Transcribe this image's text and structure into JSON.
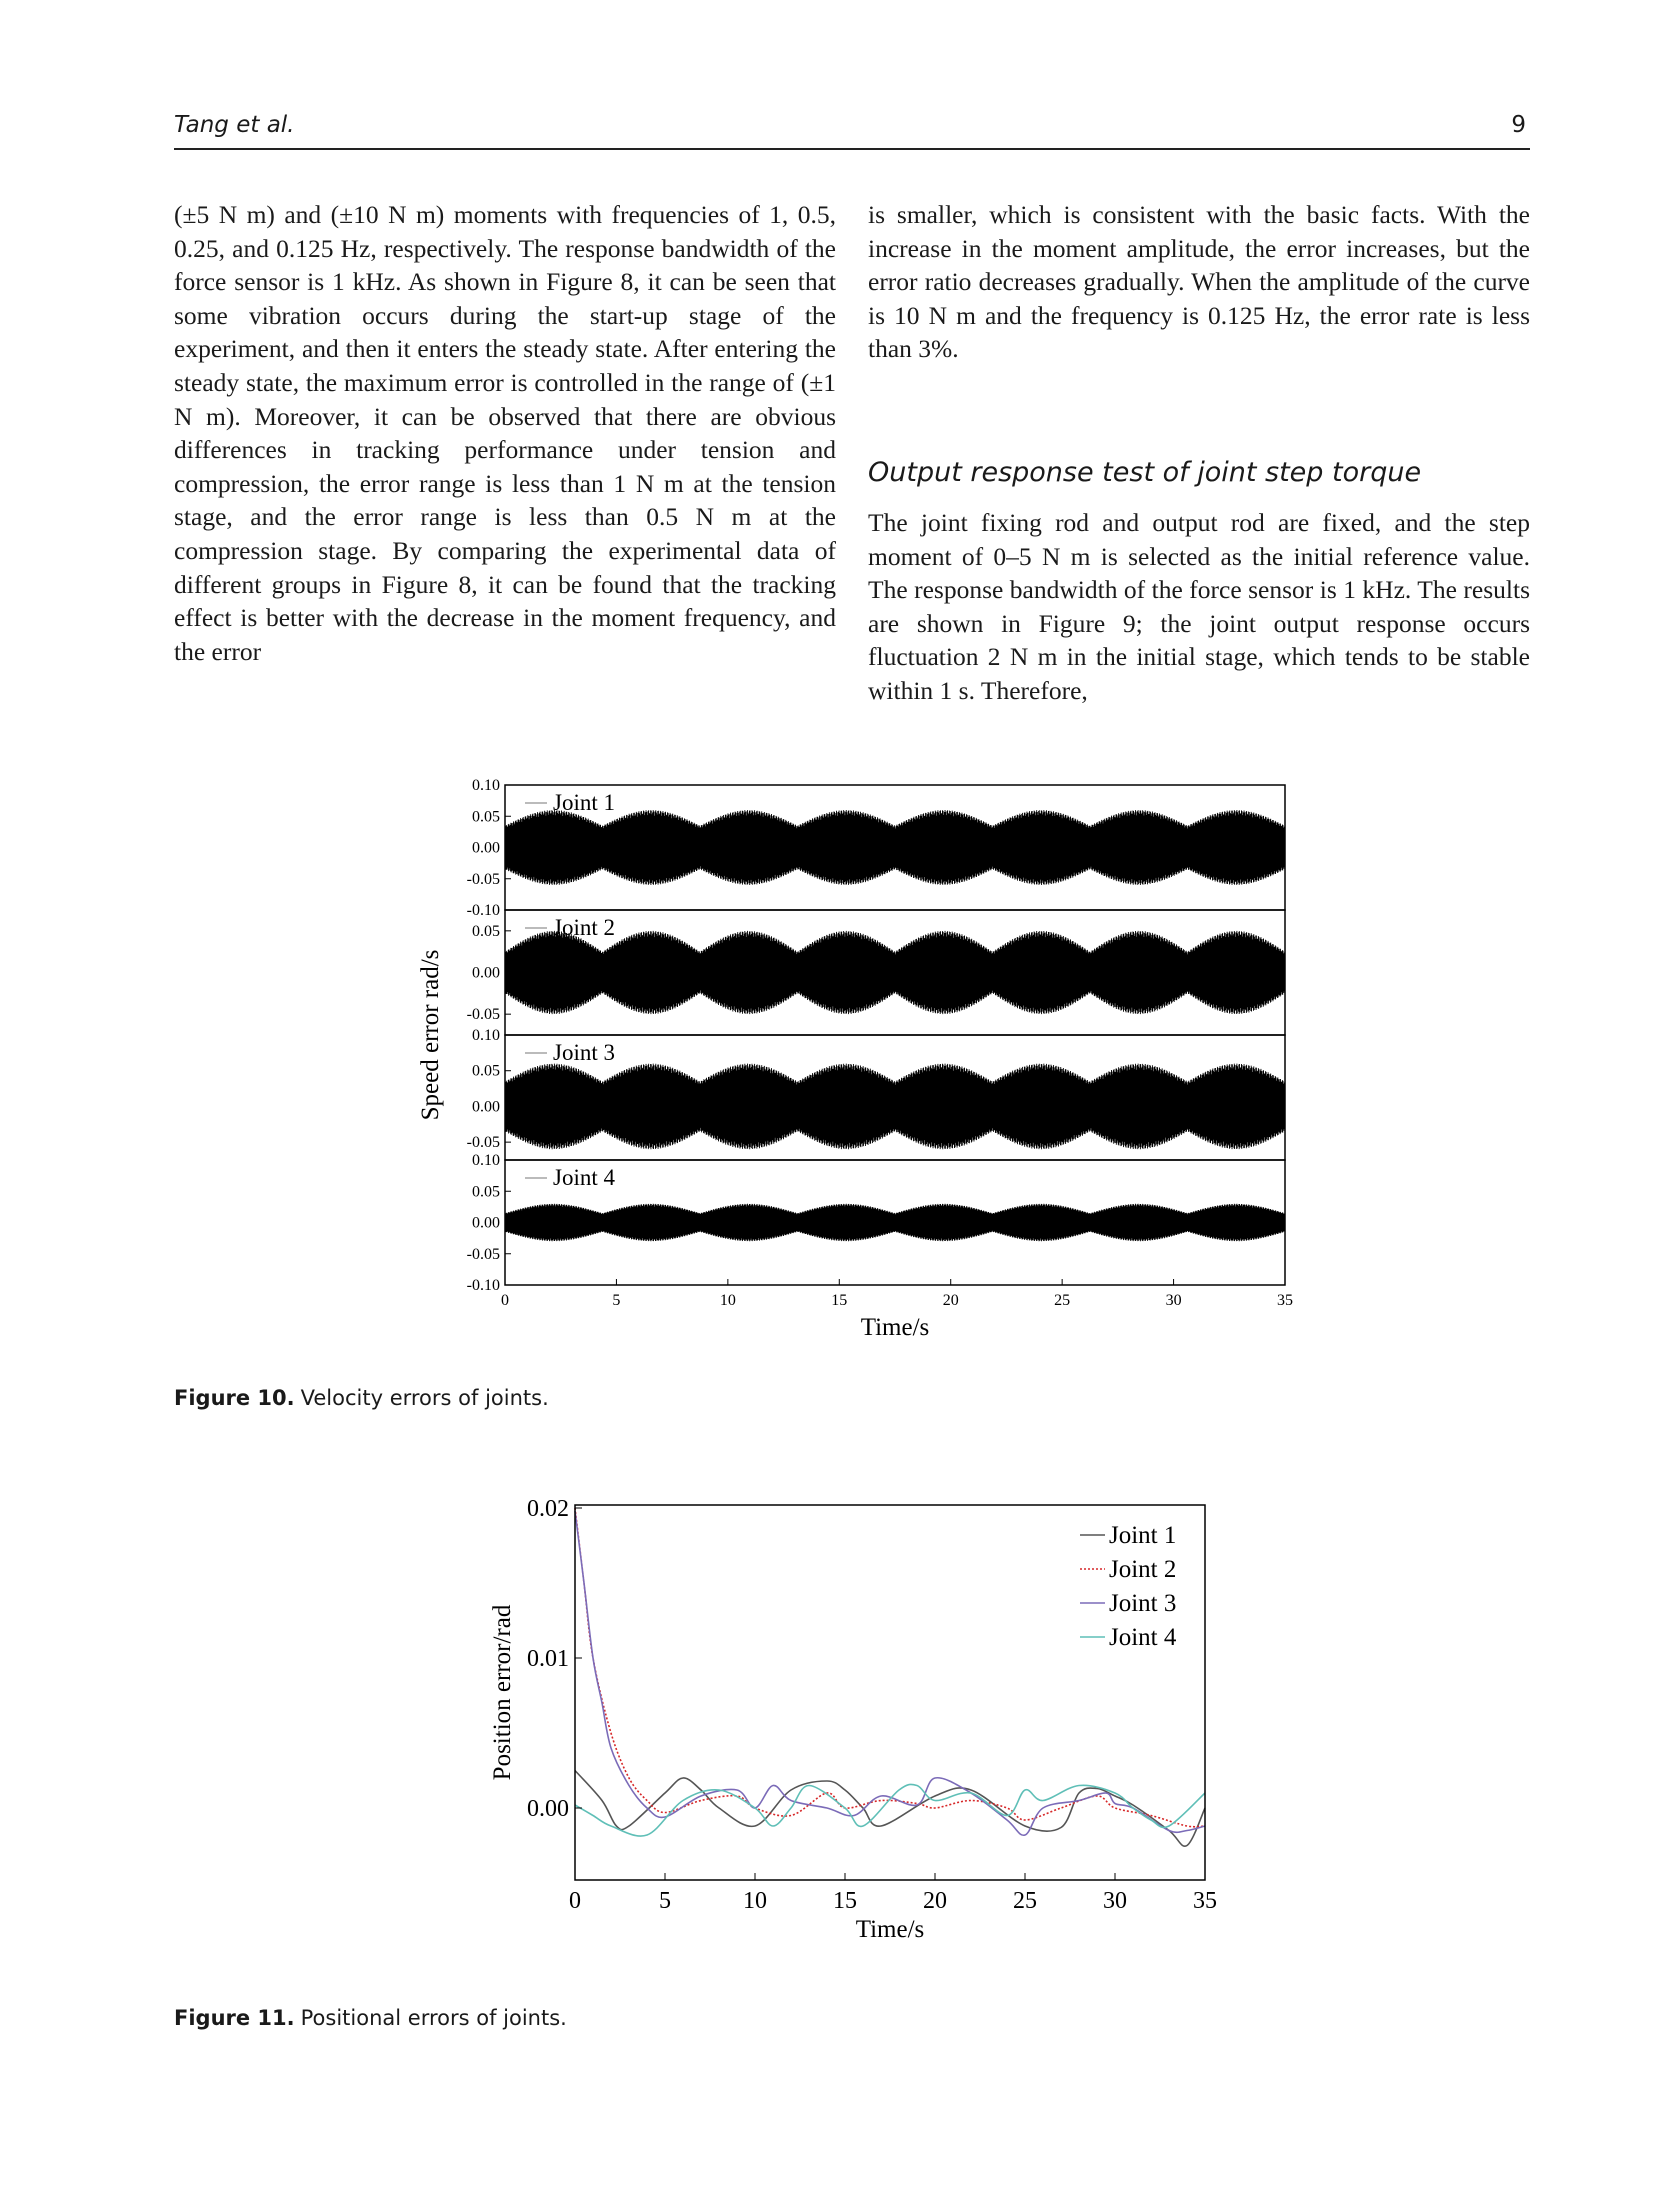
{
  "header": {
    "author": "Tang et al.",
    "page_number": "9"
  },
  "left_column": {
    "paragraph": "(±5 N m) and (±10 N m) moments with frequencies of 1, 0.5, 0.25, and 0.125 Hz, respectively. The response bandwidth of the force sensor is 1 kHz. As shown in Figure 8, it can be seen that some vibration occurs during the start-up stage of the experiment, and then it enters the steady state. After entering the steady state, the maximum error is controlled in the range of (±1 N m). Moreover, it can be observed that there are obvious differences in tracking performance under tension and compression, the error range is less than 1 N m at the tension stage, and the error range is less than 0.5 N m at the compression stage. By comparing the experimental data of different groups in Figure 8, it can be found that the tracking effect is better with the decrease in the moment frequency, and the error"
  },
  "right_column": {
    "paragraph1": "is smaller, which is consistent with the basic facts. With the increase in the moment amplitude, the error increases, but the error ratio decreases gradually. When the amplitude of the curve is 10 N m and the frequency is 0.125 Hz, the error rate is less than 3%.",
    "heading": "Output response test of joint step torque",
    "paragraph2": "The joint fixing rod and output rod are fixed, and the step moment of 0–5 N m is selected as the initial reference value. The response bandwidth of the force sensor is 1 kHz. The results are shown in Figure 9; the joint output response occurs fluctuation 2 N m in the initial stage, which tends to be stable within 1 s. Therefore,"
  },
  "figure10": {
    "label": "Figure 10.",
    "caption": "Velocity errors of joints.",
    "chart_data": {
      "type": "line",
      "ylabel": "Speed error rad/s",
      "xlabel": "Time/s",
      "xlim": [
        0,
        35
      ],
      "x_ticks": [
        "0",
        "5",
        "10",
        "15",
        "20",
        "25",
        "30",
        "35"
      ],
      "panels": [
        {
          "name": "Joint 1",
          "y_ticks": [
            "0.10",
            "0.05",
            "0.00",
            "-0.05",
            "-0.10"
          ],
          "envelope_amplitude": [
            0.035,
            0.06
          ],
          "ylim": [
            -0.1,
            0.1
          ]
        },
        {
          "name": "Joint 2",
          "y_ticks": [
            "0.05",
            "0.00",
            "-0.05"
          ],
          "envelope_amplitude": [
            0.025,
            0.05
          ],
          "ylim": [
            -0.075,
            0.075
          ]
        },
        {
          "name": "Joint 3",
          "y_ticks": [
            "0.10",
            "0.05",
            "0.00",
            "-0.05"
          ],
          "envelope_amplitude": [
            0.035,
            0.06
          ],
          "ylim": [
            -0.075,
            0.1
          ]
        },
        {
          "name": "Joint 4",
          "y_ticks": [
            "0.10",
            "0.05",
            "0.00",
            "-0.05",
            "-0.10"
          ],
          "envelope_amplitude": [
            0.015,
            0.03
          ],
          "ylim": [
            -0.1,
            0.1
          ]
        }
      ],
      "envelope_period_s": 4.375,
      "color": "#000000"
    }
  },
  "figure11": {
    "label": "Figure 11.",
    "caption": "Positional errors of joints.",
    "chart_data": {
      "type": "line",
      "ylabel": "Position error/rad",
      "xlabel": "Time/s",
      "xlim": [
        0,
        35
      ],
      "ylim": [
        -0.0048,
        0.0202
      ],
      "x_ticks": [
        "0",
        "5",
        "10",
        "15",
        "20",
        "25",
        "30",
        "35"
      ],
      "y_ticks": [
        {
          "value": 0.02,
          "label": "0.02"
        },
        {
          "value": 0.01,
          "label": "0.01"
        },
        {
          "value": 0.0,
          "label": "0.00"
        }
      ],
      "legend_position": "top-right",
      "series": [
        {
          "name": "Joint 1",
          "color": "#555555",
          "dash": "",
          "x": [
            0,
            1.5,
            2.3,
            3,
            5,
            6,
            7,
            8,
            10,
            12,
            14,
            15,
            16,
            17,
            20,
            22,
            25,
            27,
            28,
            29,
            30,
            31,
            33,
            34,
            35
          ],
          "y": [
            0.0025,
            0.0005,
            -0.0012,
            -0.0012,
            0.001,
            0.002,
            0.0012,
            0.0,
            -0.0012,
            0.0012,
            0.0018,
            0.0012,
            0.0,
            -0.0012,
            0.0008,
            0.0012,
            -0.0012,
            -0.0013,
            0.001,
            0.0013,
            0.0008,
            0.0002,
            -0.0015,
            -0.0025,
            0.0
          ]
        },
        {
          "name": "Joint 2",
          "color": "#d62728",
          "dash": "2,2",
          "x": [
            0,
            0.5,
            1,
            2,
            3,
            4,
            5,
            7,
            9,
            10,
            12,
            14,
            15,
            17,
            19,
            20,
            22,
            24,
            25,
            27,
            29,
            30,
            32,
            34,
            35
          ],
          "y": [
            0.02,
            0.015,
            0.01,
            0.005,
            0.002,
            0.0005,
            -0.0003,
            0.0005,
            0.0008,
            0.0,
            -0.0005,
            0.001,
            0.0,
            0.0005,
            0.0003,
            0.0,
            0.0005,
            0.0,
            -0.0008,
            0.0,
            0.0008,
            0.0,
            -0.0005,
            -0.0012,
            -0.0012
          ]
        },
        {
          "name": "Joint 3",
          "color": "#7b6bb8",
          "dash": "",
          "x": [
            0,
            0.5,
            1,
            1.5,
            2,
            3,
            4,
            5,
            7,
            9,
            10,
            11,
            12,
            14,
            15.5,
            17,
            19,
            20,
            22,
            24,
            25,
            26,
            28,
            29.5,
            30,
            31,
            33,
            34,
            35
          ],
          "y": [
            0.0198,
            0.015,
            0.01,
            0.007,
            0.004,
            0.0015,
            0.0,
            -0.0006,
            0.0008,
            0.0012,
            0.0,
            0.0015,
            0.0005,
            0.0,
            -0.0005,
            0.0008,
            0.0002,
            0.002,
            0.001,
            -0.0008,
            -0.0018,
            0.0,
            0.0005,
            0.001,
            0.0003,
            0.0,
            -0.0015,
            -0.0015,
            -0.0012
          ]
        },
        {
          "name": "Joint 4",
          "color": "#5fbfb7",
          "dash": "",
          "x": [
            0,
            1,
            2,
            4,
            6,
            8,
            10,
            11,
            12,
            13,
            15,
            16,
            18,
            19,
            20,
            22,
            24,
            25,
            26,
            28,
            30,
            31,
            32,
            33,
            35
          ],
          "y": [
            0.0002,
            -0.0005,
            -0.0012,
            -0.0018,
            0.0005,
            0.0012,
            0.0,
            -0.0012,
            0.0,
            0.0015,
            0.0,
            -0.0012,
            0.0012,
            0.0015,
            0.0005,
            0.001,
            -0.0005,
            0.0012,
            0.0005,
            0.0015,
            0.001,
            0.0,
            -0.0008,
            -0.0012,
            0.001
          ]
        }
      ]
    }
  }
}
